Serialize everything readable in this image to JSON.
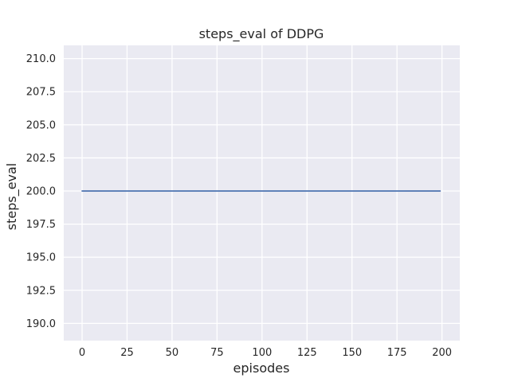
{
  "chart_data": {
    "type": "line",
    "title": "steps_eval of DDPG",
    "xlabel": "episodes",
    "ylabel": "steps_eval",
    "series": [
      {
        "name": "steps_eval",
        "x": [
          0,
          199
        ],
        "y": [
          200.0,
          200.0
        ],
        "color": "#4c72b0"
      }
    ],
    "xlim": [
      -10.2,
      209.9
    ],
    "ylim": [
      188.7,
      211.0
    ],
    "xticks": {
      "values": [
        0,
        25,
        50,
        75,
        100,
        125,
        150,
        175,
        200
      ],
      "labels": [
        "0",
        "25",
        "50",
        "75",
        "100",
        "125",
        "150",
        "175",
        "200"
      ]
    },
    "yticks": {
      "values": [
        190.0,
        192.5,
        195.0,
        197.5,
        200.0,
        202.5,
        205.0,
        207.5,
        210.0
      ],
      "labels": [
        "190.0",
        "192.5",
        "195.0",
        "197.5",
        "200.0",
        "202.5",
        "205.0",
        "207.5",
        "210.0"
      ]
    },
    "grid": true,
    "legend": "none",
    "plot_background": "#eaeaf2",
    "grid_color": "#ffffff",
    "figure_background": "#ffffff",
    "text_color": "#262626"
  }
}
